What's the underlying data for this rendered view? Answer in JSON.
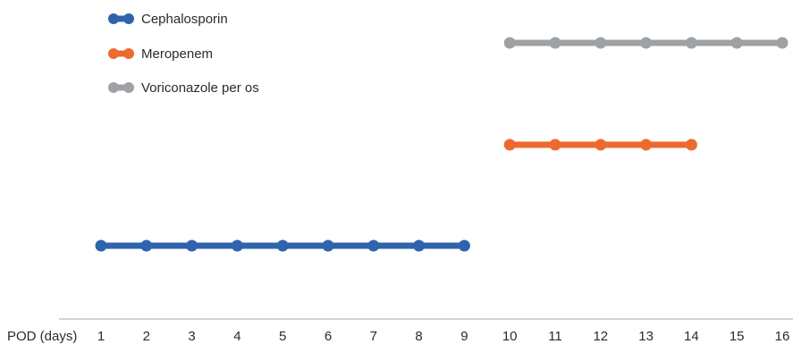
{
  "chart_data": {
    "type": "line",
    "title": "",
    "xlabel": "POD (days)",
    "ylabel": "",
    "x": [
      1,
      2,
      3,
      4,
      5,
      6,
      7,
      8,
      9,
      10,
      11,
      12,
      13,
      14,
      15,
      16
    ],
    "xlim": [
      1,
      16
    ],
    "grid": false,
    "legend_position": "top-left",
    "series": [
      {
        "name": "Cephalosporin",
        "color": "#2f63ad",
        "x": [
          1,
          2,
          3,
          4,
          5,
          6,
          7,
          8,
          9
        ],
        "level": 1
      },
      {
        "name": "Meropenem",
        "color": "#ec6a2e",
        "x": [
          10,
          11,
          12,
          13,
          14
        ],
        "level": 2
      },
      {
        "name": "Voriconazole per os",
        "color": "#9fa2a5",
        "x": [
          10,
          11,
          12,
          13,
          14,
          15,
          16
        ],
        "level": 3
      }
    ]
  }
}
